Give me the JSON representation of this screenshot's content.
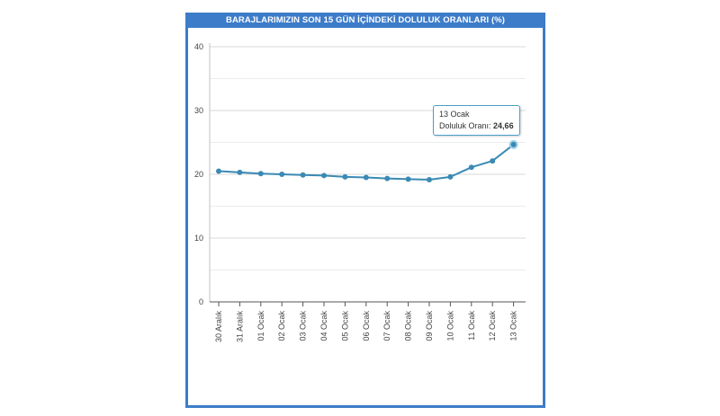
{
  "panel": {
    "title": "BARAJLARIMIZIN SON 15 GÜN İÇİNDEKİ DOLULUK ORANLARI (%)",
    "border_color": "#3d7cc9"
  },
  "tooltip": {
    "date": "13 Ocak",
    "label": "Doluluk Oranı:",
    "value": "24,66"
  },
  "chart_data": {
    "type": "line",
    "title": "BARAJLARIMIZIN SON 15 GÜN İÇİNDEKİ DOLULUK ORANLARI (%)",
    "categories": [
      "30 Aralık",
      "31 Aralık",
      "01 Ocak",
      "02 Ocak",
      "03 Ocak",
      "04 Ocak",
      "05 Ocak",
      "06 Ocak",
      "07 Ocak",
      "08 Ocak",
      "09 Ocak",
      "10 Ocak",
      "11 Ocak",
      "12 Ocak",
      "13 Ocak"
    ],
    "series": [
      {
        "name": "Doluluk Oranı",
        "color": "#3a8ab4",
        "values": [
          20.5,
          20.3,
          20.1,
          20.0,
          19.9,
          19.8,
          19.6,
          19.5,
          19.35,
          19.25,
          19.15,
          19.6,
          21.1,
          22.1,
          24.66
        ]
      }
    ],
    "ylim": [
      0,
      40
    ],
    "yticks": [
      0,
      10,
      20,
      30,
      40
    ],
    "xlabel": "",
    "ylabel": "",
    "grid": true,
    "legend": "none"
  }
}
